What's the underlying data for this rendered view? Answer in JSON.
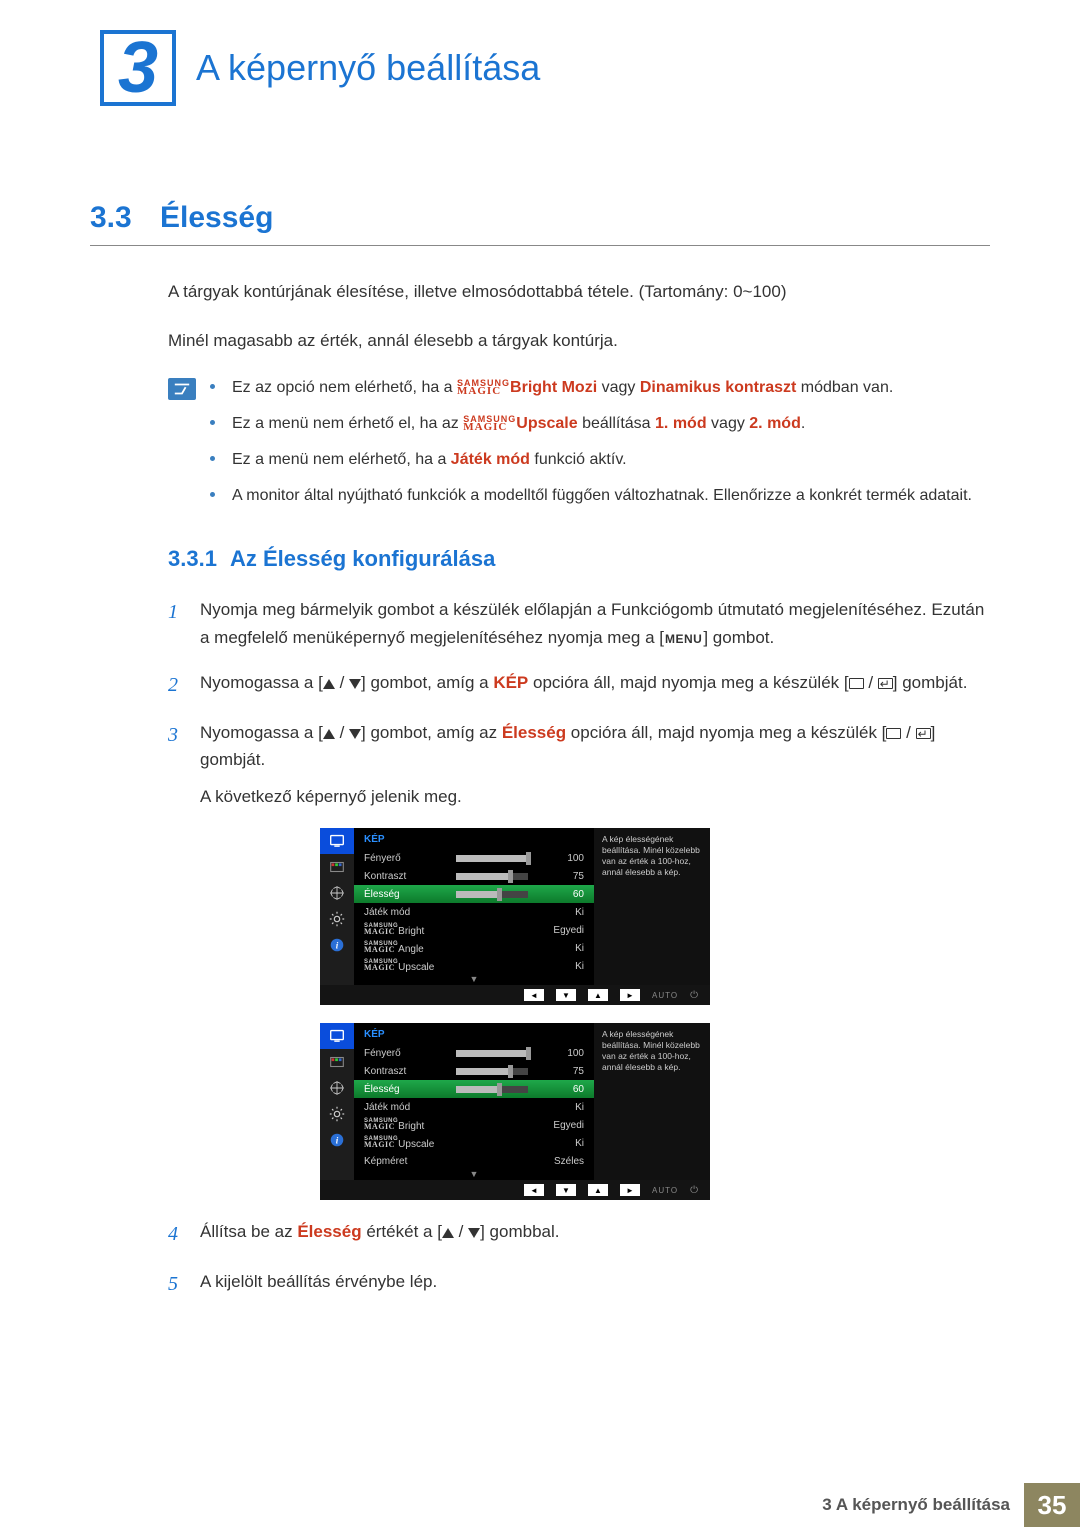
{
  "chapter": {
    "number": "3",
    "title": "A képernyő beállítása"
  },
  "section": {
    "number": "3.3",
    "title": "Élesség"
  },
  "intro": {
    "p1": "A tárgyak kontúrjának élesítése, illetve elmosódottabbá tétele. (Tartomány: 0~100)",
    "p2": "Minél magasabb az érték, annál élesebb a tárgyak kontúrja."
  },
  "note": {
    "items": [
      {
        "pre": "Ez az opció nem elérhető, ha a ",
        "mid1": "Bright",
        "bold": " Mozi",
        "mid2": " vagy ",
        "red": "Dinamikus kontraszt",
        "post": " módban van.",
        "showMagic": true
      },
      {
        "pre": "Ez a menü nem érhető el, ha az ",
        "mid1": "Upscale",
        "bold": "",
        "mid2": " beállítása ",
        "red": "1. mód",
        "mid3": " vagy ",
        "red2": "2. mód",
        "post": ".",
        "showMagic": true
      },
      {
        "pre": "Ez a menü nem elérhető, ha a ",
        "red": "Játék mód",
        "post": " funkció aktív."
      },
      {
        "pre": "A monitor által nyújtható funkciók a modelltől függően változhatnak. Ellenőrizze a konkrét termék adatait."
      }
    ]
  },
  "subsection": {
    "number": "3.3.1",
    "title": "Az Élesség konfigurálása"
  },
  "steps": {
    "s1a": "Nyomja meg bármelyik gombot a készülék előlapján a Funkciógomb útmutató megjelenítéséhez. Ezután a megfelelő menüképernyő megjelenítéséhez nyomja meg a [",
    "s1b": "] gombot.",
    "menu": "MENU",
    "s2a": "Nyomogassa a [",
    "s2b": "] gombot, amíg a ",
    "s2c": " opcióra áll, majd nyomja meg a készülék [",
    "s2d": "] gombját.",
    "kep": "KÉP",
    "s3a": "Nyomogassa a [",
    "s3b": "] gombot, amíg az ",
    "s3c": " opcióra áll, majd nyomja meg a készülék [",
    "s3d": "] gombját.",
    "elesseg": "Élesség",
    "s3e": "A következő képernyő jelenik meg.",
    "s4a": "Állítsa be az ",
    "s4b": " értékét a [",
    "s4c": "] gombbal.",
    "s5": "A kijelölt beállítás érvénybe lép."
  },
  "osd": {
    "category": "KÉP",
    "help": "A kép élességének beállítása.\nMinél közelebb van az érték a 100-hoz, annál élesebb a kép.",
    "rows1": [
      {
        "label": "Fényerő",
        "type": "slider",
        "value": 100,
        "max": 100
      },
      {
        "label": "Kontraszt",
        "type": "slider",
        "value": 75,
        "max": 100
      },
      {
        "label": "Élesség",
        "type": "slider",
        "value": 60,
        "max": 100,
        "selected": true
      },
      {
        "label": "Játék mód",
        "type": "text",
        "text": "Ki"
      },
      {
        "label": "_MAGIC_Bright",
        "type": "text",
        "text": "Egyedi"
      },
      {
        "label": "_MAGIC_Angle",
        "type": "text",
        "text": "Ki"
      },
      {
        "label": "_MAGIC_Upscale",
        "type": "text",
        "text": "Ki"
      }
    ],
    "rows2": [
      {
        "label": "Fényerő",
        "type": "slider",
        "value": 100,
        "max": 100
      },
      {
        "label": "Kontraszt",
        "type": "slider",
        "value": 75,
        "max": 100
      },
      {
        "label": "Élesség",
        "type": "slider",
        "value": 60,
        "max": 100,
        "selected": true
      },
      {
        "label": "Játék mód",
        "type": "text",
        "text": "Ki"
      },
      {
        "label": "_MAGIC_Bright",
        "type": "text",
        "text": "Egyedi"
      },
      {
        "label": "_MAGIC_Upscale",
        "type": "text",
        "text": "Ki"
      },
      {
        "label": "Képméret",
        "type": "text",
        "text": "Széles"
      }
    ],
    "auto": "AUTO",
    "side_icon_selected_index": 0,
    "colors": {
      "side_selected_bg": "#0a4ddc",
      "row_selected_bg_from": "#1fa84a",
      "row_selected_bg_to": "#0d7a2b",
      "category_color": "#2a8fff",
      "bar_bg": "#444444",
      "bar_fill": "#bbbbbb"
    }
  },
  "footer": {
    "text": "3 A képernyő beállítása",
    "page": "35"
  }
}
